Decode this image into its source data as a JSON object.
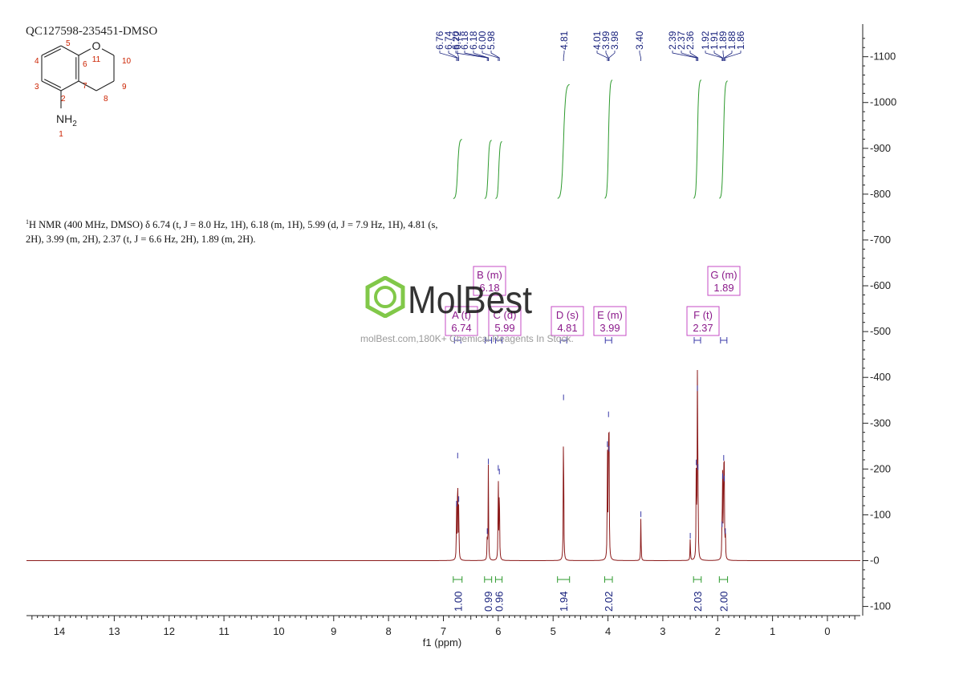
{
  "sample_id": "QC127598-235451-DMSO",
  "nmr_text": {
    "sup": "1",
    "line1": "H NMR (400 MHz, DMSO) δ 6.74 (t, J = 8.0 Hz, 1H), 6.18 (m, 1H), 5.99 (d, J = 7.9 Hz, 1H), 4.81 (s,",
    "line2": "2H), 3.99 (m, 2H), 2.37 (t, J = 6.6 Hz, 2H), 1.89 (m, 2H)."
  },
  "watermark": {
    "brand": "MolBest",
    "tagline": "molBest.com,180K+ Chemical Reagents In Stock."
  },
  "structure": {
    "atoms": [
      {
        "label": "O",
        "num": "11"
      },
      {
        "label": "NH2",
        "num": "1"
      }
    ],
    "locants": [
      "2",
      "3",
      "4",
      "5",
      "6",
      "7",
      "8",
      "9",
      "10"
    ],
    "colors": {
      "bond": "#222222",
      "locant": "#cc2200"
    }
  },
  "chart_data": {
    "type": "line",
    "title": "",
    "xlabel": "f1 (ppm)",
    "ylabel": "",
    "xlim": [
      14.6,
      -0.6
    ],
    "ylim": [
      -120,
      1180
    ],
    "x_ticks": [
      14,
      13,
      12,
      11,
      10,
      9,
      8,
      7,
      6,
      5,
      4,
      3,
      2,
      1,
      0
    ],
    "y_ticks": [
      -100,
      0,
      100,
      200,
      300,
      400,
      500,
      600,
      700,
      800,
      900,
      1000,
      1100
    ],
    "colors": {
      "spectrum": "#8b1a1a",
      "integral": "#2e9a2e",
      "peak_label": "#1a237e",
      "multiplet": "#8b1a8b"
    },
    "peaks": [
      {
        "ppm": 6.74,
        "height": 225
      },
      {
        "ppm": 6.72,
        "height": 130
      },
      {
        "ppm": 6.76,
        "height": 120
      },
      {
        "ppm": 6.18,
        "height": 212
      },
      {
        "ppm": 6.2,
        "height": 60
      },
      {
        "ppm": 6.0,
        "height": 198
      },
      {
        "ppm": 5.98,
        "height": 190
      },
      {
        "ppm": 4.81,
        "height": 352
      },
      {
        "ppm": 4.01,
        "height": 250
      },
      {
        "ppm": 3.99,
        "height": 315
      },
      {
        "ppm": 3.98,
        "height": 240
      },
      {
        "ppm": 3.4,
        "height": 97
      },
      {
        "ppm": 2.5,
        "height": 50
      },
      {
        "ppm": 2.39,
        "height": 210
      },
      {
        "ppm": 2.37,
        "height": 372
      },
      {
        "ppm": 2.36,
        "height": 200
      },
      {
        "ppm": 1.92,
        "height": 75
      },
      {
        "ppm": 1.91,
        "height": 180
      },
      {
        "ppm": 1.89,
        "height": 220
      },
      {
        "ppm": 1.88,
        "height": 175
      },
      {
        "ppm": 1.86,
        "height": 60
      }
    ],
    "peak_labels": [
      "6.76",
      "6.74",
      "6.72",
      "6.20",
      "6.18",
      "6.18",
      "6.00",
      "5.98",
      "4.81",
      "4.01",
      "3.99",
      "3.98",
      "3.40",
      "2.39",
      "2.37",
      "2.36",
      "1.92",
      "1.91",
      "1.89",
      "1.88",
      "1.86"
    ],
    "integrals": [
      {
        "from": 6.82,
        "to": 6.66,
        "value": "1.00",
        "top": 920
      },
      {
        "from": 6.25,
        "to": 6.12,
        "value": "0.99",
        "top": 918
      },
      {
        "from": 6.05,
        "to": 5.93,
        "value": "0.96",
        "top": 915
      },
      {
        "from": 4.92,
        "to": 4.7,
        "value": "1.94",
        "top": 1040
      },
      {
        "from": 4.06,
        "to": 3.92,
        "value": "2.02",
        "top": 1050
      },
      {
        "from": 2.44,
        "to": 2.3,
        "value": "2.03",
        "top": 1050
      },
      {
        "from": 1.97,
        "to": 1.82,
        "value": "2.00",
        "top": 1048
      }
    ],
    "multiplets": [
      {
        "letter": "A (t)",
        "ppm_label": "6.74",
        "center": 6.74
      },
      {
        "letter": "B (m)",
        "ppm_label": "6.18",
        "center": 6.18
      },
      {
        "letter": "C (d)",
        "ppm_label": "5.99",
        "center": 5.99
      },
      {
        "letter": "D (s)",
        "ppm_label": "4.81",
        "center": 4.81
      },
      {
        "letter": "E (m)",
        "ppm_label": "3.99",
        "center": 3.99
      },
      {
        "letter": "F (t)",
        "ppm_label": "2.37",
        "center": 2.37
      },
      {
        "letter": "G (m)",
        "ppm_label": "1.89",
        "center": 1.89
      }
    ]
  }
}
